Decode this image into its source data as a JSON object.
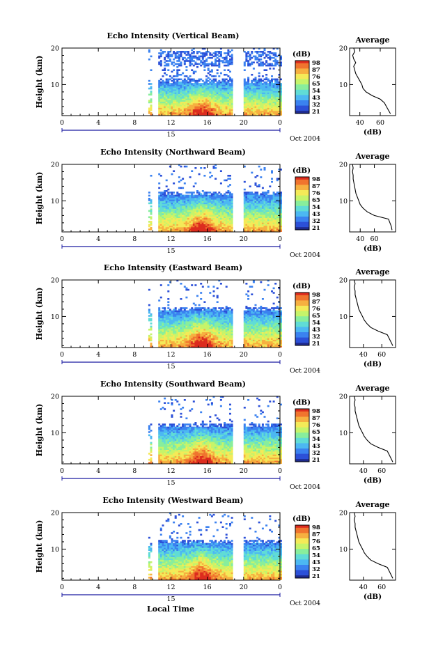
{
  "figure": {
    "x_axis_label": "Local Time",
    "date_label": "Oct 2004",
    "day_marker": "15",
    "avg_title": "Average",
    "avg_xlabel": "(dB)",
    "cbar_unit": "(dB)"
  },
  "colors": {
    "colormap": [
      "#1e2a8e",
      "#2c50d8",
      "#3b82f0",
      "#4cb8f2",
      "#60dcd6",
      "#88ee9c",
      "#c6f46a",
      "#f4ea58",
      "#f6b040",
      "#f0742e",
      "#dc2c1e"
    ],
    "axis": "#000000",
    "timeline": "#1a1aa0",
    "background": "#ffffff"
  },
  "chart_data": [
    {
      "type": "heatmap",
      "title": "Echo Intensity (Vertical Beam)",
      "ylabel": "Height (km)",
      "xlim": [
        0,
        24
      ],
      "ylim": [
        1.5,
        20
      ],
      "xticks": [
        "0",
        "4",
        "8",
        "12",
        "16",
        "20",
        "0"
      ],
      "yticks": [
        "10",
        "20"
      ],
      "colorbar": {
        "ticks": [
          "98",
          "87",
          "76",
          "65",
          "54",
          "43",
          "32",
          "21"
        ],
        "range": [
          21,
          98
        ]
      },
      "data_time_ranges": [
        [
          9.5,
          9.8
        ],
        [
          10.6,
          18.6
        ],
        [
          20,
          24
        ]
      ],
      "average_profile": {
        "xticks": [
          "40",
          "60"
        ],
        "xlim": [
          30,
          75
        ],
        "ylim": [
          1.5,
          20
        ],
        "x_db": [
          70,
          68,
          66,
          64,
          60,
          52,
          46,
          43,
          42,
          40,
          38,
          36,
          35,
          34,
          36,
          34,
          33,
          35,
          34,
          33,
          32
        ],
        "height_km": [
          2,
          3,
          4,
          5,
          6,
          7,
          8,
          9,
          10,
          11,
          12,
          13,
          14,
          15,
          16,
          17,
          18,
          19,
          20,
          20.5,
          21
        ]
      }
    },
    {
      "type": "heatmap",
      "title": "Echo Intensity (Northward Beam)",
      "ylabel": "Height (km)",
      "xlim": [
        0,
        24
      ],
      "ylim": [
        1.5,
        20
      ],
      "xticks": [
        "0",
        "4",
        "8",
        "12",
        "16",
        "20",
        "0"
      ],
      "yticks": [
        "10",
        "20"
      ],
      "colorbar": {
        "ticks": [
          "98",
          "87",
          "76",
          "65",
          "54",
          "43",
          "32",
          "21"
        ],
        "range": [
          21,
          98
        ]
      },
      "data_time_ranges": [
        [
          9.5,
          9.8
        ],
        [
          10.6,
          18.6
        ],
        [
          20,
          24
        ]
      ],
      "average_profile": {
        "xticks": [
          "40",
          "60"
        ],
        "xlim": [
          25,
          90
        ],
        "ylim": [
          1.5,
          20
        ],
        "x_db": [
          85,
          84,
          82,
          80,
          60,
          50,
          44,
          40,
          38,
          36,
          34,
          33,
          32,
          31,
          30,
          30,
          29,
          30,
          29,
          28,
          28
        ],
        "height_km": [
          2,
          3,
          4,
          5,
          6,
          7,
          8,
          9,
          10,
          11,
          12,
          13,
          14,
          15,
          16,
          17,
          18,
          19,
          20,
          20.5,
          21
        ]
      }
    },
    {
      "type": "heatmap",
      "title": "Echo Intensity (Eastward Beam)",
      "ylabel": "Height (km)",
      "xlim": [
        0,
        24
      ],
      "ylim": [
        1.5,
        20
      ],
      "xticks": [
        "0",
        "4",
        "8",
        "12",
        "16",
        "20",
        "0"
      ],
      "yticks": [
        "10",
        "20"
      ],
      "colorbar": {
        "ticks": [
          "98",
          "87",
          "76",
          "65",
          "54",
          "43",
          "32",
          "21"
        ],
        "range": [
          21,
          98
        ]
      },
      "data_time_ranges": [
        [
          9.5,
          9.8
        ],
        [
          10.6,
          18.6
        ],
        [
          20,
          24
        ]
      ],
      "average_profile": {
        "xticks": [
          "40",
          "60"
        ],
        "xlim": [
          25,
          75
        ],
        "ylim": [
          1.5,
          20
        ],
        "x_db": [
          72,
          70,
          68,
          66,
          56,
          48,
          44,
          41,
          39,
          37,
          35,
          34,
          33,
          32,
          31,
          31,
          30,
          31,
          30,
          29,
          29
        ],
        "height_km": [
          2,
          3,
          4,
          5,
          6,
          7,
          8,
          9,
          10,
          11,
          12,
          13,
          14,
          15,
          16,
          17,
          18,
          19,
          20,
          20.5,
          21
        ]
      }
    },
    {
      "type": "heatmap",
      "title": "Echo Intensity (Southward Beam)",
      "ylabel": "Height (km)",
      "xlim": [
        0,
        24
      ],
      "ylim": [
        1.5,
        20
      ],
      "xticks": [
        "0",
        "4",
        "8",
        "12",
        "16",
        "20",
        "0"
      ],
      "yticks": [
        "10",
        "20"
      ],
      "colorbar": {
        "ticks": [
          "98",
          "87",
          "76",
          "65",
          "54",
          "43",
          "32",
          "21"
        ],
        "range": [
          21,
          98
        ]
      },
      "data_time_ranges": [
        [
          9.5,
          9.8
        ],
        [
          10.6,
          18.6
        ],
        [
          20,
          24
        ]
      ],
      "average_profile": {
        "xticks": [
          "40",
          "60"
        ],
        "xlim": [
          25,
          75
        ],
        "ylim": [
          1.5,
          20
        ],
        "x_db": [
          72,
          70,
          68,
          66,
          56,
          48,
          44,
          41,
          39,
          37,
          35,
          34,
          33,
          32,
          31,
          31,
          30,
          31,
          30,
          29,
          29
        ],
        "height_km": [
          2,
          3,
          4,
          5,
          6,
          7,
          8,
          9,
          10,
          11,
          12,
          13,
          14,
          15,
          16,
          17,
          18,
          19,
          20,
          20.5,
          21
        ]
      }
    },
    {
      "type": "heatmap",
      "title": "Echo Intensity (Westward Beam)",
      "ylabel": "Height (km)",
      "xlim": [
        0,
        24
      ],
      "ylim": [
        1.5,
        20
      ],
      "xticks": [
        "0",
        "4",
        "8",
        "12",
        "16",
        "20",
        "0"
      ],
      "yticks": [
        "10",
        "20"
      ],
      "colorbar": {
        "ticks": [
          "98",
          "87",
          "76",
          "65",
          "54",
          "43",
          "32",
          "21"
        ],
        "range": [
          21,
          98
        ]
      },
      "data_time_ranges": [
        [
          9.5,
          9.8
        ],
        [
          10.6,
          18.6
        ],
        [
          20,
          24
        ]
      ],
      "average_profile": {
        "xticks": [
          "40",
          "60"
        ],
        "xlim": [
          25,
          75
        ],
        "ylim": [
          1.5,
          20
        ],
        "x_db": [
          72,
          70,
          68,
          66,
          56,
          48,
          44,
          41,
          39,
          37,
          35,
          34,
          33,
          32,
          31,
          31,
          30,
          31,
          30,
          29,
          29
        ],
        "height_km": [
          2,
          3,
          4,
          5,
          6,
          7,
          8,
          9,
          10,
          11,
          12,
          13,
          14,
          15,
          16,
          17,
          18,
          19,
          20,
          20.5,
          21
        ]
      }
    }
  ]
}
